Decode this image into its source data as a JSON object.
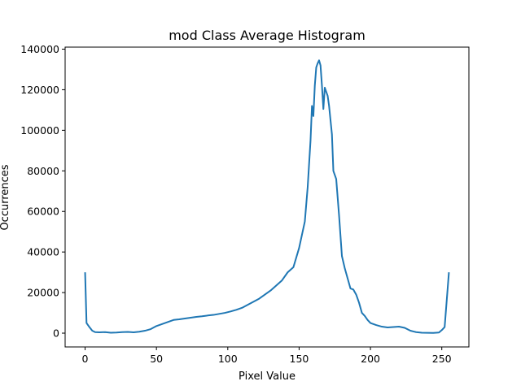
{
  "chart_data": {
    "type": "line",
    "title": "mod Class Average Histogram",
    "xlabel": "Pixel Value",
    "ylabel": "Occurrences",
    "xlim": [
      -14,
      269
    ],
    "ylim": [
      -6800,
      141000
    ],
    "xticks": [
      0,
      50,
      100,
      150,
      200,
      250
    ],
    "yticks": [
      0,
      20000,
      40000,
      60000,
      80000,
      100000,
      120000,
      140000
    ],
    "grid": false,
    "line_color": "#1f77b4",
    "series": [
      {
        "x": [
          0,
          1,
          3,
          5,
          7,
          10,
          14,
          18,
          22,
          26,
          30,
          34,
          38,
          42,
          46,
          50,
          54,
          58,
          62,
          66,
          70,
          74,
          78,
          82,
          86,
          90,
          94,
          98,
          102,
          106,
          110,
          114,
          118,
          122,
          126,
          130,
          134,
          138,
          142,
          146,
          150,
          154,
          156,
          158,
          159,
          160,
          161,
          162,
          163,
          164,
          165,
          166,
          167,
          168,
          169,
          170,
          171,
          172,
          173,
          174,
          176,
          178,
          180,
          182,
          184,
          186,
          188,
          190,
          192,
          194,
          196,
          198,
          200,
          204,
          208,
          212,
          216,
          220,
          224,
          228,
          232,
          236,
          240,
          244,
          248,
          250,
          252,
          255
        ],
        "y": [
          30000,
          5000,
          3000,
          1200,
          500,
          400,
          500,
          200,
          300,
          500,
          600,
          400,
          700,
          1200,
          2000,
          3500,
          4500,
          5500,
          6500,
          6800,
          7200,
          7600,
          8000,
          8300,
          8700,
          9000,
          9500,
          10000,
          10700,
          11500,
          12500,
          14000,
          15500,
          17000,
          19000,
          21000,
          23500,
          26000,
          30000,
          32500,
          42000,
          55000,
          72000,
          95000,
          112000,
          107000,
          122000,
          131000,
          133000,
          134500,
          132000,
          122000,
          110500,
          121000,
          119000,
          117000,
          112000,
          105000,
          98000,
          80000,
          76000,
          58000,
          38000,
          32000,
          27000,
          22000,
          21500,
          19000,
          15000,
          10000,
          8500,
          6500,
          5000,
          4000,
          3200,
          2800,
          3000,
          3200,
          2600,
          1200,
          500,
          200,
          150,
          100,
          300,
          1500,
          3000,
          30000
        ]
      }
    ]
  }
}
